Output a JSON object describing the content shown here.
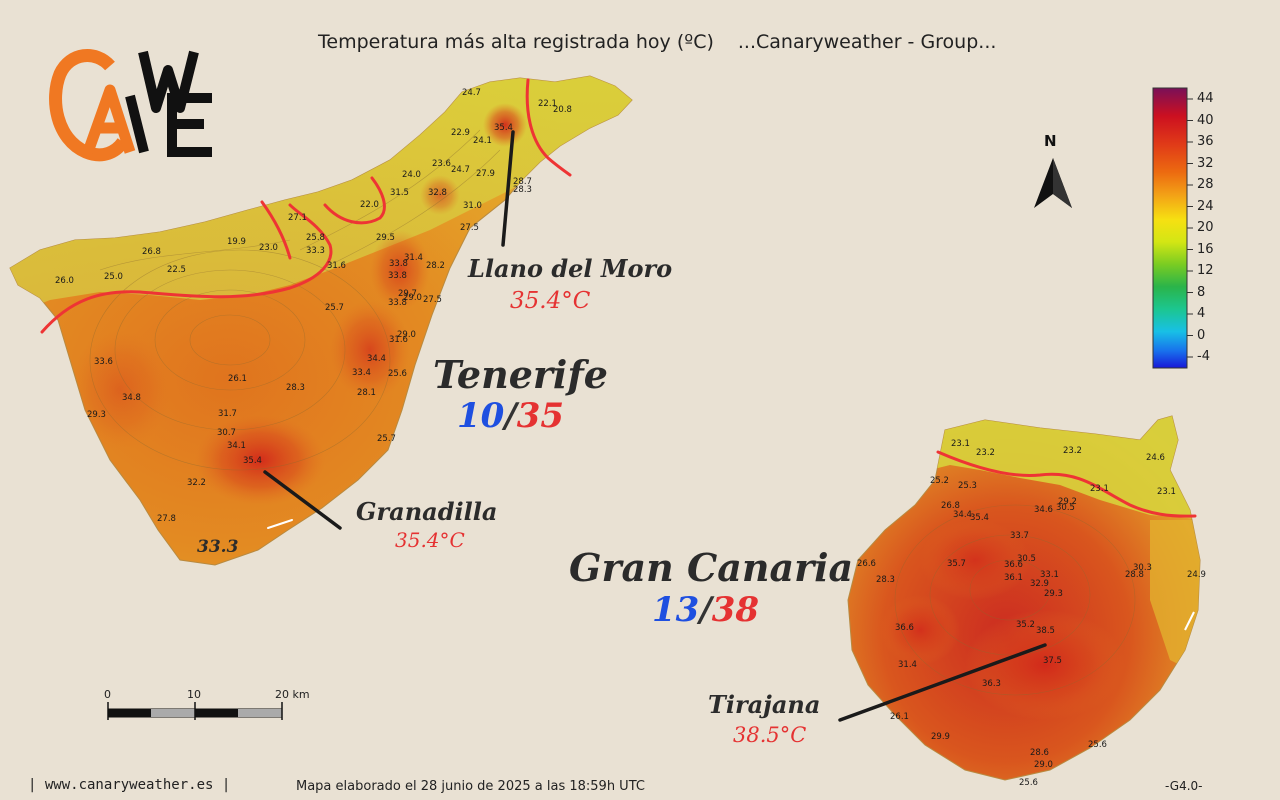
{
  "title": {
    "main": "Temperatura más alta registrada hoy (ºC)",
    "source": "...Canaryweather - Group..."
  },
  "logo": {
    "text": "CAWE"
  },
  "islands": [
    {
      "name": "Tenerife",
      "min": "10",
      "max": "35",
      "callouts": [
        {
          "name": "Llano del Moro",
          "temp": "35.4°C"
        },
        {
          "name": "Granadilla",
          "temp": "35.4°C"
        }
      ]
    },
    {
      "name": "Gran Canaria",
      "min": "13",
      "max": "38",
      "callouts": [
        {
          "name": "Tirajana",
          "temp": "38.5°C"
        }
      ]
    }
  ],
  "highlight_value": "33.3",
  "stations_tenerife": [
    "24.7",
    "22.1",
    "20.8",
    "22.9",
    "35.4",
    "24.1",
    "23.6",
    "24.7",
    "27.9",
    "24.0",
    "28.7",
    "28.3",
    "31.5",
    "32.8",
    "22.0",
    "31.0",
    "27.1",
    "27.5",
    "19.9",
    "23.0",
    "25.8",
    "29.5",
    "33.3",
    "31.4",
    "26.8",
    "22.5",
    "31.6",
    "33.8",
    "28.2",
    "25.0",
    "33.8",
    "26.0",
    "29.7",
    "29.0",
    "27.5",
    "33.8",
    "25.7",
    "29.0",
    "31.6",
    "33.6",
    "34.4",
    "33.4",
    "25.6",
    "26.1",
    "28.3",
    "28.1",
    "34.8",
    "29.3",
    "31.7",
    "30.7",
    "34.1",
    "25.7",
    "35.4",
    "32.2",
    "27.8"
  ],
  "stations_grancanaria": [
    "23.1",
    "23.2",
    "23.2",
    "24.6",
    "25.2",
    "25.3",
    "23.1",
    "23.1",
    "26.8",
    "29.2",
    "34.4",
    "35.4",
    "34.6",
    "30.5",
    "33.7",
    "26.6",
    "35.7",
    "30.5",
    "36.6",
    "36.1",
    "33.1",
    "30.3",
    "28.3",
    "32.9",
    "28.8",
    "24.9",
    "29.3",
    "36.6",
    "35.2",
    "38.5",
    "31.4",
    "37.5",
    "36.3",
    "26.1",
    "29.9",
    "28.6",
    "25.6",
    "29.0",
    "25.6"
  ],
  "legend": {
    "values": [
      "44",
      "40",
      "36",
      "32",
      "28",
      "24",
      "20",
      "16",
      "12",
      "8",
      "4",
      "0",
      "-4"
    ],
    "colors": [
      "#7a1058",
      "#cc1020",
      "#e03a18",
      "#ec6a10",
      "#f3a016",
      "#f6e012",
      "#d3e614",
      "#7acc22",
      "#2ab44a",
      "#1cc690",
      "#18c0e6",
      "#1870ec",
      "#1818d8"
    ]
  },
  "north_label": "N",
  "scale": {
    "labels": [
      "0",
      "10",
      "20 km"
    ]
  },
  "footer": {
    "website": "| www.canaryweather.es |",
    "note": "Mapa elaborado el 28 junio de 2025 a las 18:59h UTC",
    "version": "-G4.0-"
  }
}
